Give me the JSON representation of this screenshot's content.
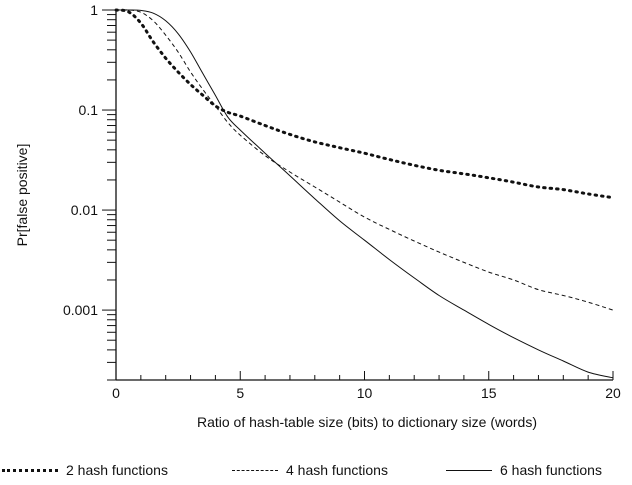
{
  "chart_data": {
    "type": "line",
    "title": "",
    "xlabel": "Ratio of hash-table size (bits) to dictionary size (words)",
    "ylabel": "Pr[false positive]",
    "xlim": [
      0,
      20
    ],
    "ylim": [
      0.0002,
      1
    ],
    "yscale": "log",
    "x_ticks": [
      0,
      5,
      10,
      15,
      20
    ],
    "x_tick_labels": [
      "0",
      "5",
      "10",
      "15",
      "20"
    ],
    "y_ticks": [
      1,
      0.1,
      0.01,
      0.001
    ],
    "y_tick_labels": [
      "1",
      "0.1",
      "0.01",
      "0.001"
    ],
    "grid": false,
    "legend_position": "bottom",
    "x": [
      0,
      0.5,
      1,
      1.5,
      2,
      2.5,
      3,
      3.5,
      4,
      4.5,
      5,
      6,
      7,
      8,
      9,
      10,
      11,
      12,
      13,
      14,
      15,
      16,
      17,
      18,
      19,
      20
    ],
    "series": [
      {
        "name": "2 hash functions",
        "style": "dotted",
        "color": "#111111",
        "values": [
          1,
          0.96,
          0.74,
          0.48,
          0.33,
          0.24,
          0.18,
          0.14,
          0.11,
          0.095,
          0.087,
          0.07,
          0.057,
          0.048,
          0.042,
          0.037,
          0.032,
          0.028,
          0.025,
          0.023,
          0.021,
          0.019,
          0.017,
          0.016,
          0.0145,
          0.0133
        ]
      },
      {
        "name": "4 hash functions",
        "style": "dashed",
        "color": "#111111",
        "values": [
          1,
          1,
          0.95,
          0.78,
          0.56,
          0.38,
          0.24,
          0.16,
          0.11,
          0.075,
          0.056,
          0.035,
          0.024,
          0.017,
          0.012,
          0.0085,
          0.0064,
          0.0049,
          0.0038,
          0.003,
          0.0024,
          0.002,
          0.0016,
          0.0014,
          0.0012,
          0.001
        ]
      },
      {
        "name": "6 hash functions",
        "style": "solid",
        "color": "#111111",
        "values": [
          1,
          1,
          0.99,
          0.93,
          0.78,
          0.58,
          0.38,
          0.23,
          0.14,
          0.085,
          0.063,
          0.037,
          0.022,
          0.013,
          0.0078,
          0.005,
          0.0032,
          0.0021,
          0.0014,
          0.001,
          0.00072,
          0.00053,
          0.0004,
          0.00031,
          0.00024,
          0.00021
        ]
      }
    ]
  }
}
